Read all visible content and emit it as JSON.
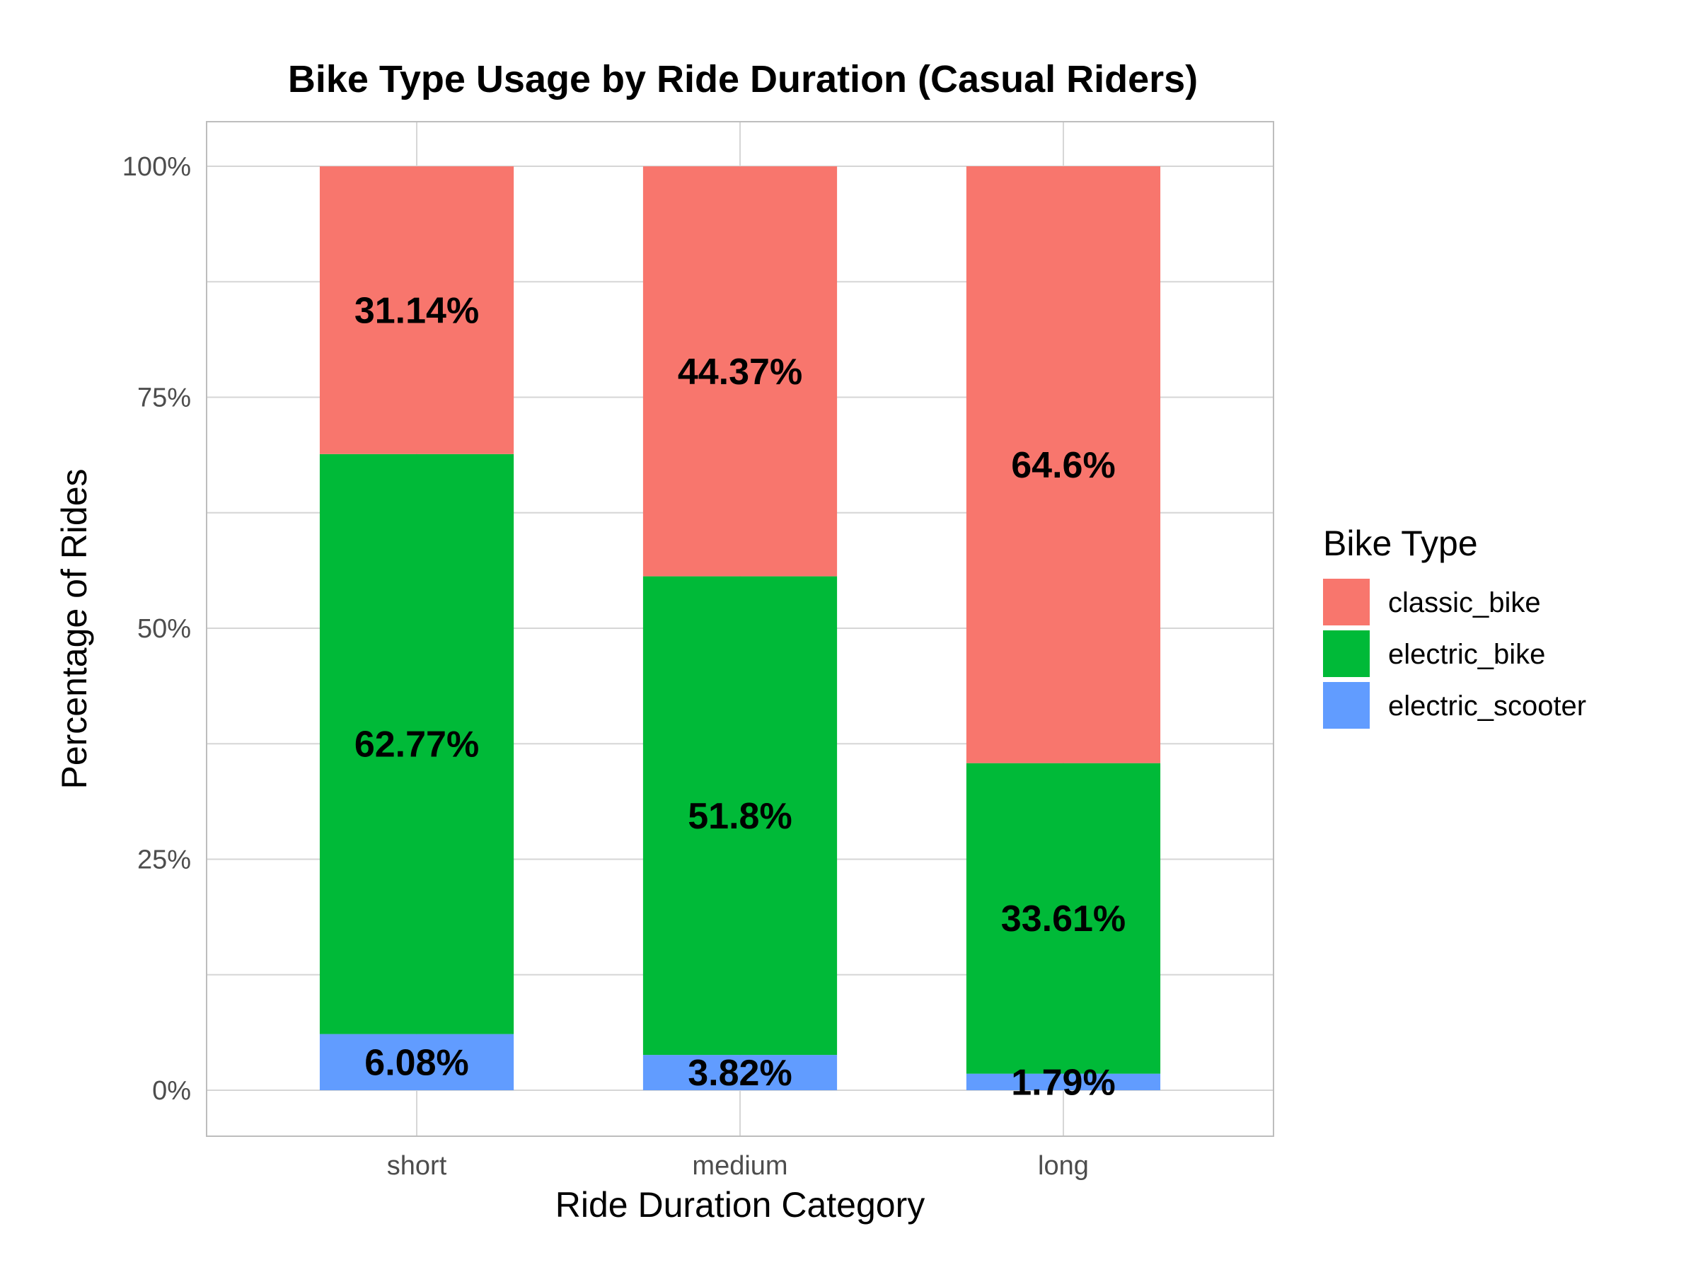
{
  "chart_data": {
    "type": "bar",
    "stacked": true,
    "title": "Bike Type Usage by Ride Duration (Casual Riders)",
    "xlabel": "Ride Duration Category",
    "ylabel": "Percentage of Rides",
    "categories": [
      "short",
      "medium",
      "long"
    ],
    "ylim": [
      0,
      100
    ],
    "y_ticks": [
      0,
      25,
      50,
      75,
      100
    ],
    "y_tick_labels": [
      "0%",
      "25%",
      "50%",
      "75%",
      "100%"
    ],
    "grid": true,
    "legend": {
      "title": "Bike Type",
      "position": "right"
    },
    "series": [
      {
        "name": "electric_scooter",
        "color": "#619CFF",
        "values": [
          6.08,
          3.82,
          1.79
        ],
        "labels": [
          "6.08%",
          "3.82%",
          "1.79%"
        ]
      },
      {
        "name": "electric_bike",
        "color": "#00BA38",
        "values": [
          62.77,
          51.8,
          33.61
        ],
        "labels": [
          "62.77%",
          "51.8%",
          "33.61%"
        ]
      },
      {
        "name": "classic_bike",
        "color": "#F8766D",
        "values": [
          31.14,
          44.37,
          64.6
        ],
        "labels": [
          "31.14%",
          "44.37%",
          "64.6%"
        ]
      }
    ],
    "legend_order": [
      "classic_bike",
      "electric_bike",
      "electric_scooter"
    ]
  }
}
